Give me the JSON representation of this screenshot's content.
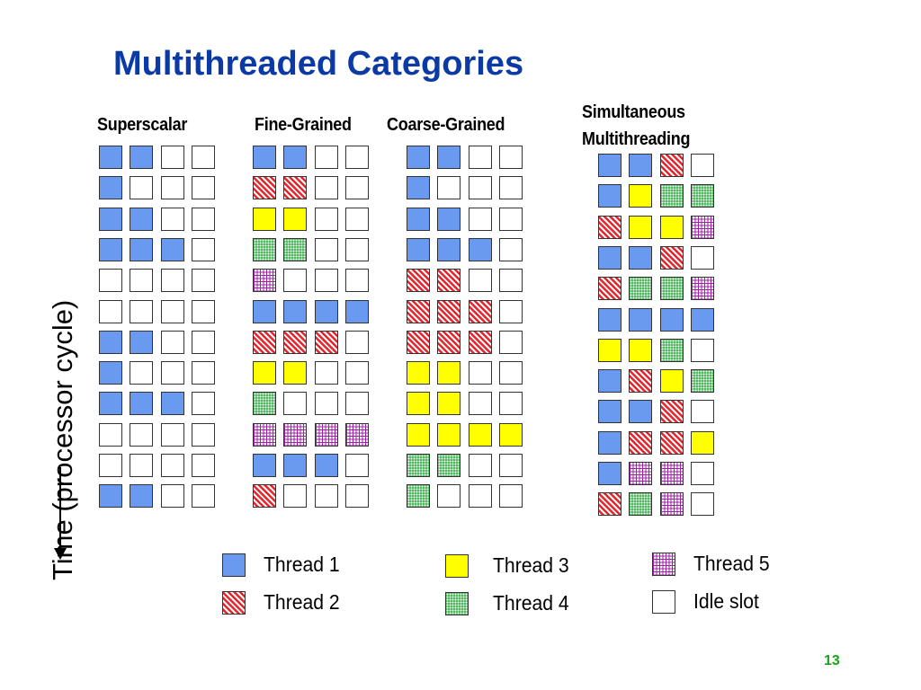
{
  "title": "Multithreaded Categories",
  "axis": {
    "label": "Time (processor cycle)"
  },
  "columns": [
    {
      "id": "superscalar",
      "label_lines": [
        "Superscalar"
      ],
      "rows": [
        "1100",
        "1000",
        "1100",
        "1110",
        "0000",
        "0000",
        "1100",
        "1000",
        "1110",
        "0000",
        "0000",
        "1100"
      ]
    },
    {
      "id": "fine-grained",
      "label_lines": [
        "Fine-Grained"
      ],
      "rows": [
        "1100",
        "2200",
        "3300",
        "4400",
        "5000",
        "1111",
        "2220",
        "3300",
        "4000",
        "5555",
        "1110",
        "2000"
      ]
    },
    {
      "id": "coarse-grained",
      "label_lines": [
        "Coarse-Grained"
      ],
      "rows": [
        "1100",
        "1000",
        "1100",
        "1110",
        "2200",
        "2220",
        "2220",
        "3300",
        "3300",
        "3333",
        "4400",
        "4000"
      ]
    },
    {
      "id": "smt",
      "label_lines": [
        "Simultaneous",
        "Multithreading"
      ],
      "rows": [
        "1120",
        "1344",
        "2335",
        "1120",
        "2445",
        "1111",
        "3340",
        "1234",
        "1120",
        "1223",
        "1550",
        "2450"
      ]
    }
  ],
  "legend": [
    {
      "thread": 1,
      "label": "Thread 1"
    },
    {
      "thread": 2,
      "label": "Thread 2"
    },
    {
      "thread": 3,
      "label": "Thread 3"
    },
    {
      "thread": 4,
      "label": "Thread 4"
    },
    {
      "thread": 5,
      "label": "Thread 5"
    },
    {
      "thread": 0,
      "label": "Idle slot"
    }
  ],
  "colors": {
    "title": "#0b3aa6",
    "thread1": "#6a9af0",
    "thread2": "#e8232a",
    "thread3": "#ffff00",
    "thread4": "#3fb04f",
    "thread5": "#a020a8",
    "page_number": "#1aa31a"
  },
  "page_number": "13"
}
